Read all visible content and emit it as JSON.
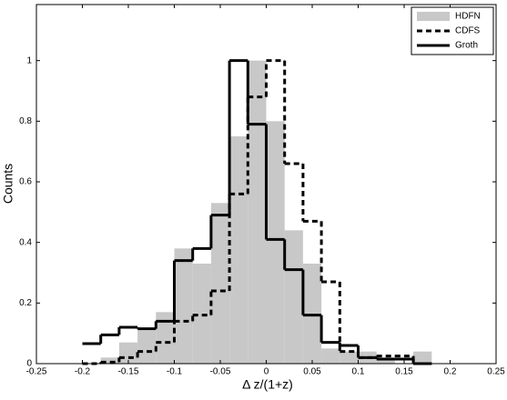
{
  "chart_data": {
    "type": "histogram",
    "xlabel": "Δ z/(1+z)",
    "ylabel": "Counts",
    "bins": [
      -0.2,
      -0.18,
      -0.16,
      -0.14,
      -0.12,
      -0.1,
      -0.08,
      -0.06,
      -0.04,
      -0.02,
      0,
      0.02,
      0.04,
      0.06,
      0.08,
      0.1,
      0.12,
      0.14,
      0.16,
      0.18
    ],
    "series": [
      {
        "name": "HDFN",
        "color": "#c8c8c8",
        "style": "filled",
        "values": [
          0,
          0.02,
          0.07,
          0.11,
          0.17,
          0.38,
          0.33,
          0.53,
          0.75,
          1.0,
          0.8,
          0.44,
          0.33,
          0.05,
          0.04,
          0.04,
          0.02,
          0,
          0.04
        ]
      },
      {
        "name": "CDFS",
        "color": "#000000",
        "style": "dashed",
        "values": [
          0,
          0.005,
          0.02,
          0.04,
          0.07,
          0.14,
          0.16,
          0.24,
          0.56,
          0.88,
          1.0,
          0.66,
          0.47,
          0.27,
          0.04,
          0.02,
          0.025,
          0.025,
          0
        ]
      },
      {
        "name": "Groth",
        "color": "#000000",
        "style": "solid",
        "values": [
          0.066,
          0.095,
          0.12,
          0.115,
          0.14,
          0.34,
          0.38,
          0.49,
          1.0,
          0.79,
          0.41,
          0.31,
          0.16,
          0.07,
          0.06,
          0.02,
          0.015,
          0.015,
          0
        ]
      }
    ],
    "xlim": [
      -0.25,
      0.25
    ],
    "xticks": [
      -0.25,
      -0.2,
      -0.15,
      -0.1,
      -0.05,
      0,
      0.05,
      0.1,
      0.15,
      0.2,
      0.25
    ],
    "ylim": [
      0,
      1.185
    ],
    "yticks": [
      0,
      0.2,
      0.4,
      0.6,
      0.8,
      1
    ],
    "legend": "upper right"
  }
}
